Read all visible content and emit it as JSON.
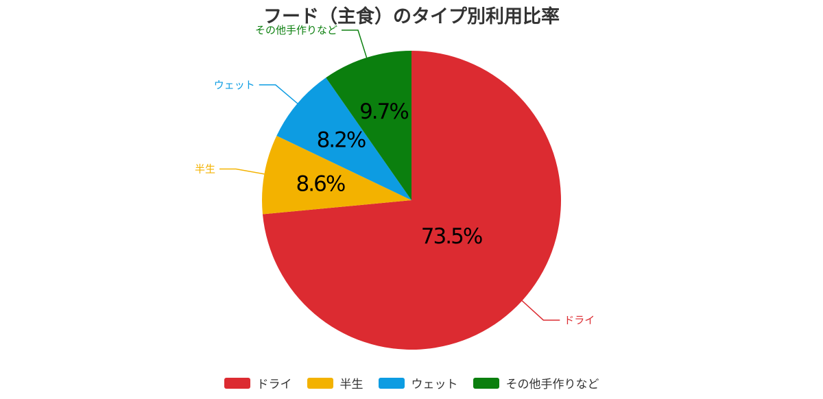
{
  "chart_data": {
    "type": "pie",
    "title": "フード（主食）のタイプ別利用比率",
    "categories": [
      "ドライ",
      "半生",
      "ウェット",
      "その他手作りなど"
    ],
    "values": [
      73.5,
      8.6,
      8.2,
      9.7
    ],
    "value_labels": [
      "73.5%",
      "8.6%",
      "8.2%",
      "9.7%"
    ],
    "colors": [
      "#dc2b31",
      "#f3b200",
      "#0d9ce2",
      "#0b7f0e"
    ],
    "legend_position": "bottom",
    "start_angle": "12 o'clock",
    "direction": "clockwise"
  }
}
